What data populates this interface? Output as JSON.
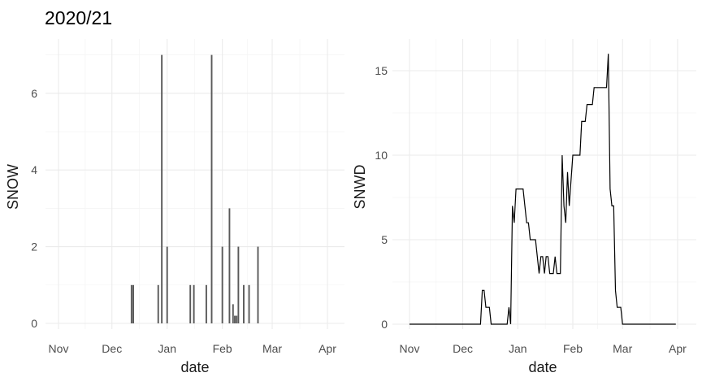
{
  "figure": {
    "title": "2020/21",
    "season": "2020/21",
    "colors": {
      "background": "#ffffff",
      "bar": "#595959",
      "line": "#000000",
      "grid_major": "#ebebeb",
      "grid_minor": "#f4f4f4",
      "tick_label": "#4d4d4d",
      "axis_text": "#1a1a1a"
    }
  },
  "chart_data": [
    {
      "type": "bar",
      "title": "2020/21",
      "xlabel": "date",
      "ylabel": "SNOW",
      "x_tick_labels": [
        "Nov",
        "Dec",
        "Jan",
        "Feb",
        "Mar",
        "Apr"
      ],
      "y_ticks": [
        0,
        2,
        4,
        6
      ],
      "ylim": [
        0,
        7.4
      ],
      "grid": true,
      "legend": "none",
      "points": [
        {
          "date": "Dec 12",
          "value": 1
        },
        {
          "date": "Dec 13",
          "value": 1
        },
        {
          "date": "Dec 27",
          "value": 1
        },
        {
          "date": "Dec 29",
          "value": 7
        },
        {
          "date": "Jan 1",
          "value": 2
        },
        {
          "date": "Jan 14",
          "value": 1
        },
        {
          "date": "Jan 16",
          "value": 1
        },
        {
          "date": "Jan 23",
          "value": 1
        },
        {
          "date": "Jan 26",
          "value": 7
        },
        {
          "date": "Feb 1",
          "value": 2
        },
        {
          "date": "Feb 5",
          "value": 3
        },
        {
          "date": "Feb 7",
          "value": 0.5
        },
        {
          "date": "Feb 8",
          "value": 0.2
        },
        {
          "date": "Feb 9",
          "value": 0.2
        },
        {
          "date": "Feb 10",
          "value": 2
        },
        {
          "date": "Feb 13",
          "value": 1
        },
        {
          "date": "Feb 16",
          "value": 1
        },
        {
          "date": "Feb 21",
          "value": 2
        }
      ]
    },
    {
      "type": "line",
      "title": "",
      "xlabel": "date",
      "ylabel": "SNWD",
      "x_tick_labels": [
        "Nov",
        "Dec",
        "Jan",
        "Feb",
        "Mar",
        "Apr"
      ],
      "y_ticks": [
        0,
        5,
        10,
        15
      ],
      "ylim": [
        0,
        16.9
      ],
      "grid": true,
      "legend": "none",
      "points": [
        {
          "date": "Nov 1",
          "value": 0
        },
        {
          "date": "Dec 11",
          "value": 0
        },
        {
          "date": "Dec 12",
          "value": 2
        },
        {
          "date": "Dec 13",
          "value": 2
        },
        {
          "date": "Dec 14",
          "value": 1
        },
        {
          "date": "Dec 16",
          "value": 1
        },
        {
          "date": "Dec 17",
          "value": 0
        },
        {
          "date": "Dec 26",
          "value": 0
        },
        {
          "date": "Dec 27",
          "value": 1
        },
        {
          "date": "Dec 28",
          "value": 0
        },
        {
          "date": "Dec 29",
          "value": 7
        },
        {
          "date": "Dec 30",
          "value": 6
        },
        {
          "date": "Dec 31",
          "value": 8
        },
        {
          "date": "Jan 4",
          "value": 8
        },
        {
          "date": "Jan 5",
          "value": 7
        },
        {
          "date": "Jan 6",
          "value": 6
        },
        {
          "date": "Jan 7",
          "value": 6
        },
        {
          "date": "Jan 8",
          "value": 5
        },
        {
          "date": "Jan 11",
          "value": 5
        },
        {
          "date": "Jan 12",
          "value": 4
        },
        {
          "date": "Jan 13",
          "value": 3
        },
        {
          "date": "Jan 14",
          "value": 4
        },
        {
          "date": "Jan 15",
          "value": 4
        },
        {
          "date": "Jan 16",
          "value": 3
        },
        {
          "date": "Jan 17",
          "value": 4
        },
        {
          "date": "Jan 18",
          "value": 4
        },
        {
          "date": "Jan 19",
          "value": 3
        },
        {
          "date": "Jan 21",
          "value": 3
        },
        {
          "date": "Jan 22",
          "value": 4
        },
        {
          "date": "Jan 23",
          "value": 3
        },
        {
          "date": "Jan 25",
          "value": 3
        },
        {
          "date": "Jan 26",
          "value": 10
        },
        {
          "date": "Jan 27",
          "value": 7
        },
        {
          "date": "Jan 28",
          "value": 6
        },
        {
          "date": "Jan 29",
          "value": 9
        },
        {
          "date": "Jan 30",
          "value": 7
        },
        {
          "date": "Feb 1",
          "value": 10
        },
        {
          "date": "Feb 5",
          "value": 10
        },
        {
          "date": "Feb 6",
          "value": 12
        },
        {
          "date": "Feb 8",
          "value": 12
        },
        {
          "date": "Feb 9",
          "value": 13
        },
        {
          "date": "Feb 12",
          "value": 13
        },
        {
          "date": "Feb 13",
          "value": 14
        },
        {
          "date": "Feb 20",
          "value": 14
        },
        {
          "date": "Feb 21",
          "value": 16
        },
        {
          "date": "Feb 22",
          "value": 8
        },
        {
          "date": "Feb 23",
          "value": 7
        },
        {
          "date": "Feb 24",
          "value": 7
        },
        {
          "date": "Feb 25",
          "value": 2
        },
        {
          "date": "Feb 26",
          "value": 1
        },
        {
          "date": "Feb 28",
          "value": 1
        },
        {
          "date": "Mar 1",
          "value": 0
        },
        {
          "date": "Mar 31",
          "value": 0
        }
      ]
    }
  ]
}
